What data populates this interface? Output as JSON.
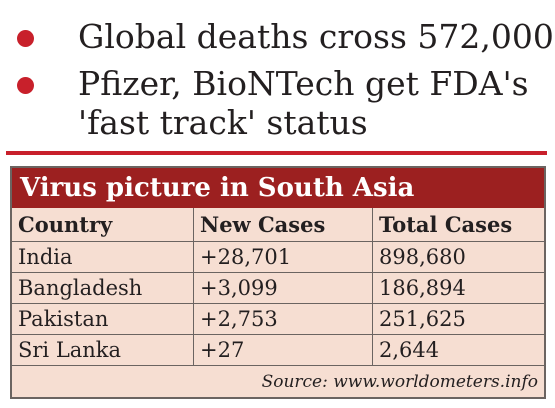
{
  "bullets": [
    {
      "lines": [
        "Global deaths cross 572,000"
      ]
    },
    {
      "lines": [
        "Pfizer, BioNTech get FDA's",
        "'fast track' status"
      ]
    }
  ],
  "table": {
    "title": "Virus picture in South Asia",
    "headers": [
      "Country",
      "New Cases",
      "Total Cases"
    ],
    "rows": [
      [
        "India",
        "+28,701",
        "898,680"
      ],
      [
        "Bangladesh",
        "+3,099",
        "186,894"
      ],
      [
        "Pakistan",
        "+2,753",
        "251,625"
      ],
      [
        "Sri Lanka",
        "+27",
        "2,644"
      ]
    ],
    "source": "Source: www.worldometers.info"
  },
  "colors": {
    "accent_red": "#c8202b",
    "title_bar": "#9c2020",
    "panel_bg": "#f6ded2",
    "text": "#231f20"
  }
}
